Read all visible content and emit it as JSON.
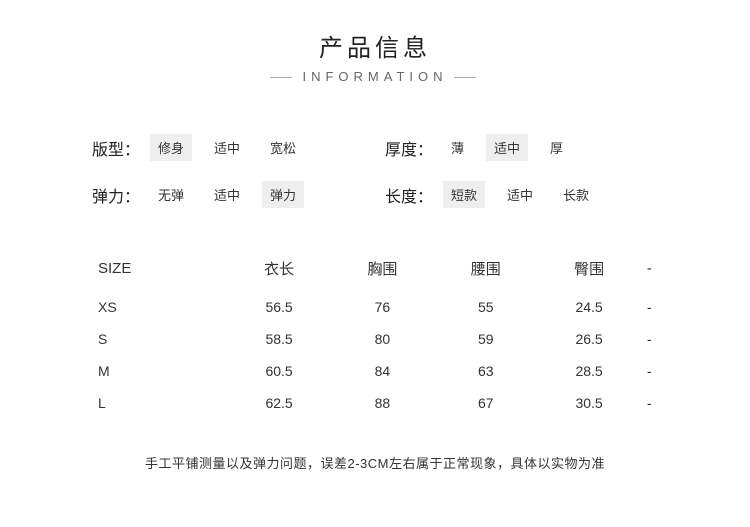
{
  "header": {
    "title_cn": "产品信息",
    "title_en": "INFORMATION"
  },
  "attributes": [
    {
      "label": "版型：",
      "options": [
        {
          "text": "修身",
          "selected": true
        },
        {
          "text": "适中",
          "selected": false
        },
        {
          "text": "宽松",
          "selected": false
        }
      ]
    },
    {
      "label": "厚度：",
      "options": [
        {
          "text": "薄",
          "selected": false
        },
        {
          "text": "适中",
          "selected": true
        },
        {
          "text": "厚",
          "selected": false
        }
      ]
    },
    {
      "label": "弹力：",
      "options": [
        {
          "text": "无弹",
          "selected": false
        },
        {
          "text": "适中",
          "selected": false
        },
        {
          "text": "弹力",
          "selected": true
        }
      ]
    },
    {
      "label": "长度：",
      "options": [
        {
          "text": "短款",
          "selected": true
        },
        {
          "text": "适中",
          "selected": false
        },
        {
          "text": "长款",
          "selected": false
        }
      ]
    }
  ],
  "size_table": {
    "columns": [
      "SIZE",
      "衣长",
      "胸围",
      "腰围",
      "臀围",
      "-"
    ],
    "rows": [
      [
        "XS",
        "56.5",
        "76",
        "55",
        "24.5",
        "-"
      ],
      [
        "S",
        "58.5",
        "80",
        "59",
        "26.5",
        "-"
      ],
      [
        "M",
        "60.5",
        "84",
        "63",
        "28.5",
        "-"
      ],
      [
        "L",
        "62.5",
        "88",
        "67",
        "30.5",
        "-"
      ]
    ]
  },
  "footnote": "手工平铺测量以及弹力问题，误差2-3CM左右属于正常现象，具体以实物为准"
}
